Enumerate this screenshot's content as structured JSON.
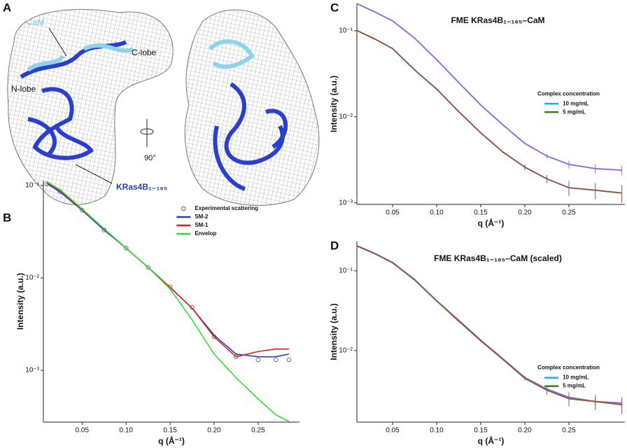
{
  "figure": {
    "panel_labels": [
      "A",
      "B",
      "C",
      "D"
    ],
    "structure_labels": {
      "cam": "CaM",
      "c_lobe": "C-lobe",
      "n_lobe": "N-lobe",
      "kras": "KRas4B₁₋₁₈₅",
      "rotation": "90°"
    }
  },
  "chart_data": [
    {
      "type": "line",
      "ylabel": "Intensity (a.u.)",
      "xlabel": "q (Å⁻¹)",
      "log_y": true,
      "legend": "upper-right",
      "x": [
        0.01,
        0.025,
        0.05,
        0.075,
        0.1,
        0.125,
        0.15,
        0.175,
        0.2,
        0.225,
        0.25,
        0.27,
        0.285
      ],
      "xlim": [
        0.006,
        0.297
      ],
      "ylim": [
        0.000275,
        0.113
      ],
      "xticks": [
        0.05,
        {
          "value": 0.1,
          "label": "0.10"
        },
        0.15,
        {
          "value": 0.2,
          "label": "0.20"
        },
        0.25
      ],
      "yticks": [
        {
          "value": 0.1,
          "label": "10⁻¹"
        },
        {
          "value": 0.01,
          "label": "10⁻²"
        },
        {
          "value": 0.001,
          "label": "10⁻³"
        }
      ],
      "series": [
        {
          "name": "Experimental scattering",
          "color": "#555555",
          "marker": "circle",
          "values": [
            0.104,
            0.086,
            0.054,
            0.033,
            0.021,
            0.013,
            0.008,
            0.0048,
            0.0023,
            0.0014,
            0.0013,
            0.0013,
            0.0013
          ]
        },
        {
          "name": "SM-2",
          "color": "#2040d0",
          "values": [
            0.105,
            0.085,
            0.054,
            0.033,
            0.021,
            0.013,
            0.0079,
            0.0047,
            0.0024,
            0.0015,
            0.0014,
            0.0014,
            0.0015
          ]
        },
        {
          "name": "SM-1",
          "color": "#e02020",
          "values": [
            0.108,
            0.088,
            0.055,
            0.034,
            0.021,
            0.013,
            0.0079,
            0.0047,
            0.0023,
            0.0014,
            0.0016,
            0.0017,
            0.0017
          ]
        },
        {
          "name": "Envelop",
          "color": "#30e030",
          "values": [
            0.11,
            0.09,
            0.056,
            0.034,
            0.021,
            0.013,
            0.0076,
            0.0035,
            0.0015,
            0.00083,
            0.00049,
            0.00033,
            0.00028
          ]
        }
      ]
    },
    {
      "type": "line",
      "title": "FME KRas4B₁₋₁₈₅–CaM",
      "ylabel": "Intensity (a.u.)",
      "xlabel": "q (Å⁻¹)",
      "log_y": true,
      "legend": "center-right",
      "legend_title": "Complex concentration",
      "x": [
        0.01,
        0.03,
        0.05,
        0.075,
        0.1,
        0.125,
        0.15,
        0.175,
        0.2,
        0.225,
        0.25,
        0.28,
        0.31
      ],
      "xlim": [
        0.0095,
        0.3135
      ],
      "ylim": [
        0.00096,
        0.207
      ],
      "xticks": [
        0.05,
        {
          "value": 0.1,
          "label": "0.10"
        },
        0.15,
        {
          "value": 0.2,
          "label": "0.20"
        },
        0.25
      ],
      "yticks": [
        {
          "value": 0.1,
          "label": "10⁻¹"
        },
        {
          "value": 0.01,
          "label": "10⁻²"
        },
        {
          "value": 0.001,
          "label": "10⁻³"
        }
      ],
      "series": [
        {
          "name": "10 mg/mL",
          "color": "#29abe2",
          "errorbar_color": "#9370db",
          "values": [
            0.205,
            0.165,
            0.13,
            0.082,
            0.046,
            0.025,
            0.0137,
            0.0081,
            0.0049,
            0.0035,
            0.0028,
            0.0025,
            0.0024
          ],
          "errors": [
            0.002,
            0.0015,
            0.001,
            0.0006,
            0.0003,
            0.0002,
            0.00015,
            0.0001,
            0.0001,
            0.0002,
            0.0003,
            0.0003,
            0.0003
          ]
        },
        {
          "name": "5 mg/mL",
          "color": "#3a7d1e",
          "errorbar_color": "#8b5a4a",
          "values": [
            0.1,
            0.08,
            0.062,
            0.035,
            0.021,
            0.0115,
            0.0065,
            0.0039,
            0.0026,
            0.0019,
            0.0015,
            0.0014,
            0.0013
          ],
          "errors": [
            0.0015,
            0.001,
            0.0008,
            0.0005,
            0.0003,
            0.0002,
            0.00015,
            0.0001,
            0.0002,
            0.0002,
            0.0003,
            0.0003,
            0.0003
          ]
        }
      ]
    },
    {
      "type": "line",
      "title": "FME KRas4B₁₋₁₈₅–CaM (scaled)",
      "ylabel": "Intensity (a.u.)",
      "xlabel": "q (Å⁻¹)",
      "log_y": true,
      "legend": "lower-right",
      "legend_title": "Complex concentration",
      "x": [
        0.01,
        0.03,
        0.05,
        0.075,
        0.1,
        0.125,
        0.15,
        0.175,
        0.2,
        0.225,
        0.25,
        0.28,
        0.31
      ],
      "xlim": [
        0.0095,
        0.3135
      ],
      "ylim": [
        0.00127,
        0.233
      ],
      "xticks": [
        0.05,
        {
          "value": 0.1,
          "label": "0.10"
        },
        0.15,
        {
          "value": 0.2,
          "label": "0.20"
        },
        0.25
      ],
      "yticks": [
        {
          "value": 0.1,
          "label": "10⁻¹"
        },
        {
          "value": 0.01,
          "label": "10⁻²"
        }
      ],
      "series": [
        {
          "name": "10 mg/mL",
          "color": "#29abe2",
          "errorbar_color": "#9370db",
          "values": [
            0.205,
            0.165,
            0.127,
            0.078,
            0.042,
            0.024,
            0.0135,
            0.0079,
            0.0046,
            0.0033,
            0.0026,
            0.0023,
            0.0022
          ],
          "errors": [
            0.002,
            0.0015,
            0.001,
            0.0006,
            0.0003,
            0.0002,
            0.00015,
            0.0001,
            0.0001,
            0.0002,
            0.0003,
            0.0003,
            0.0003
          ]
        },
        {
          "name": "5 mg/mL",
          "color": "#3a7d1e",
          "errorbar_color": "#8b5a4a",
          "values": [
            0.204,
            0.164,
            0.126,
            0.077,
            0.042,
            0.0235,
            0.0133,
            0.0078,
            0.0045,
            0.0032,
            0.0025,
            0.0023,
            0.0021
          ],
          "errors": [
            0.003,
            0.002,
            0.0015,
            0.001,
            0.0006,
            0.0004,
            0.0003,
            0.0002,
            0.0003,
            0.0004,
            0.0005,
            0.0005,
            0.0005
          ]
        }
      ]
    }
  ]
}
